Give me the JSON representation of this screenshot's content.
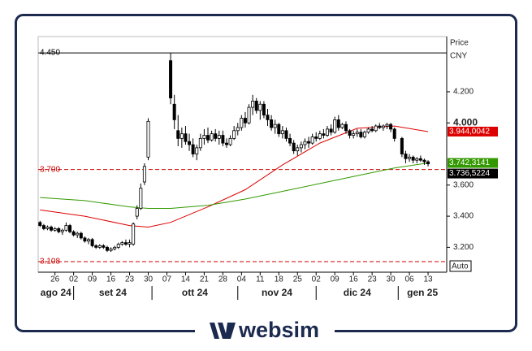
{
  "chart_data": {
    "type": "candlestick",
    "ylim": [
      3.04,
      4.555
    ],
    "xlim": [
      -0.5,
      109
    ],
    "yticks": [
      {
        "value": 3.2,
        "label": "3.200"
      },
      {
        "value": 3.4,
        "label": "3.400"
      },
      {
        "value": 3.6,
        "label": "3.600"
      },
      {
        "value": 4.0,
        "label": "4.000",
        "bold": true
      },
      {
        "value": 4.2,
        "label": "4.200"
      }
    ],
    "xticks": [
      {
        "value": 4,
        "label": "26"
      },
      {
        "value": 9,
        "label": "02"
      },
      {
        "value": 14,
        "label": "09"
      },
      {
        "value": 19,
        "label": "16"
      },
      {
        "value": 24,
        "label": "23"
      },
      {
        "value": 29,
        "label": "30"
      },
      {
        "value": 34,
        "label": "07"
      },
      {
        "value": 39,
        "label": "14"
      },
      {
        "value": 44,
        "label": "21"
      },
      {
        "value": 49,
        "label": "28"
      },
      {
        "value": 54,
        "label": "04"
      },
      {
        "value": 59,
        "label": "11"
      },
      {
        "value": 64,
        "label": "18"
      },
      {
        "value": 69,
        "label": "25"
      },
      {
        "value": 74,
        "label": "02"
      },
      {
        "value": 79,
        "label": "09"
      },
      {
        "value": 84,
        "label": "16"
      },
      {
        "value": 89,
        "label": "23"
      },
      {
        "value": 94,
        "label": "30"
      },
      {
        "value": 99,
        "label": "06"
      },
      {
        "value": 104,
        "label": "13"
      }
    ],
    "month_ticks": [
      {
        "value": -0.5,
        "label": "ago 24"
      },
      {
        "value": 9,
        "label": "set 24"
      },
      {
        "value": 30,
        "label": "ott 24"
      },
      {
        "value": 53,
        "label": "nov 24"
      },
      {
        "value": 74,
        "label": "dic 24"
      },
      {
        "value": 96,
        "label": "gen 25"
      }
    ],
    "axis_title": "Price",
    "currency": "CNY",
    "scale_mode": "Auto",
    "hlines": [
      {
        "value": 4.45,
        "label": "4.450",
        "color": "#000000",
        "dashed": false
      },
      {
        "value": 3.7,
        "label": "3.700",
        "color": "#cc0000",
        "dashed": true
      },
      {
        "value": 3.108,
        "label": "3.108",
        "color": "#cc0000",
        "dashed": true
      }
    ],
    "candles": {
      "last_label": "3.736,5224",
      "label_color": "#000000",
      "ohlc": [
        [
          3.36,
          3.37,
          3.33,
          3.34
        ],
        [
          3.34,
          3.35,
          3.31,
          3.32
        ],
        [
          3.32,
          3.34,
          3.31,
          3.33
        ],
        [
          3.33,
          3.34,
          3.3,
          3.31
        ],
        [
          3.31,
          3.33,
          3.3,
          3.32
        ],
        [
          3.32,
          3.33,
          3.29,
          3.3
        ],
        [
          3.3,
          3.32,
          3.28,
          3.31
        ],
        [
          3.31,
          3.36,
          3.3,
          3.34
        ],
        [
          3.34,
          3.35,
          3.29,
          3.3
        ],
        [
          3.3,
          3.31,
          3.27,
          3.28
        ],
        [
          3.28,
          3.3,
          3.26,
          3.29
        ],
        [
          3.29,
          3.3,
          3.25,
          3.26
        ],
        [
          3.26,
          3.27,
          3.23,
          3.24
        ],
        [
          3.24,
          3.26,
          3.22,
          3.25
        ],
        [
          3.25,
          3.26,
          3.2,
          3.21
        ],
        [
          3.21,
          3.22,
          3.19,
          3.2
        ],
        [
          3.2,
          3.22,
          3.19,
          3.21
        ],
        [
          3.21,
          3.22,
          3.19,
          3.2
        ],
        [
          3.2,
          3.21,
          3.17,
          3.18
        ],
        [
          3.18,
          3.2,
          3.17,
          3.19
        ],
        [
          3.19,
          3.21,
          3.18,
          3.2
        ],
        [
          3.2,
          3.23,
          3.19,
          3.22
        ],
        [
          3.22,
          3.24,
          3.21,
          3.23
        ],
        [
          3.23,
          3.25,
          3.21,
          3.22
        ],
        [
          3.22,
          3.25,
          3.2,
          3.23
        ],
        [
          3.22,
          3.36,
          3.21,
          3.35
        ],
        [
          3.4,
          3.47,
          3.38,
          3.45
        ],
        [
          3.45,
          3.61,
          3.44,
          3.58
        ],
        [
          3.62,
          3.74,
          3.6,
          3.72
        ],
        [
          3.78,
          4.03,
          3.76,
          4.01
        ],
        null,
        null,
        null,
        null,
        null,
        [
          4.4,
          4.45,
          4.12,
          4.16
        ],
        [
          4.12,
          4.18,
          3.96,
          4.02
        ],
        [
          3.95,
          4.05,
          3.85,
          3.9
        ],
        [
          3.9,
          3.97,
          3.84,
          3.93
        ],
        [
          3.93,
          3.98,
          3.86,
          3.88
        ],
        [
          3.88,
          3.93,
          3.82,
          3.86
        ],
        [
          3.86,
          3.9,
          3.78,
          3.8
        ],
        [
          3.8,
          3.86,
          3.76,
          3.84
        ],
        [
          3.84,
          3.93,
          3.82,
          3.9
        ],
        [
          3.9,
          3.96,
          3.86,
          3.92
        ],
        [
          3.92,
          3.97,
          3.87,
          3.89
        ],
        [
          3.89,
          3.95,
          3.88,
          3.93
        ],
        [
          3.93,
          3.96,
          3.88,
          3.9
        ],
        [
          3.9,
          3.95,
          3.86,
          3.92
        ],
        [
          3.92,
          3.95,
          3.85,
          3.87
        ],
        [
          3.87,
          3.9,
          3.84,
          3.86
        ],
        [
          3.86,
          3.92,
          3.85,
          3.9
        ],
        [
          3.9,
          3.98,
          3.89,
          3.95
        ],
        [
          3.95,
          4.0,
          3.92,
          3.97
        ],
        [
          3.97,
          4.05,
          3.95,
          4.03
        ],
        [
          4.03,
          4.07,
          3.97,
          4.0
        ],
        [
          4.0,
          4.12,
          3.99,
          4.1
        ],
        [
          4.1,
          4.18,
          4.05,
          4.14
        ],
        [
          4.14,
          4.16,
          4.06,
          4.08
        ],
        [
          4.08,
          4.14,
          4.02,
          4.12
        ],
        [
          4.12,
          4.14,
          4.03,
          4.05
        ],
        [
          4.05,
          4.09,
          3.98,
          4.02
        ],
        [
          4.02,
          4.05,
          3.95,
          3.97
        ],
        [
          3.97,
          4.02,
          3.93,
          3.99
        ],
        [
          3.99,
          4.0,
          3.91,
          3.93
        ],
        [
          3.93,
          3.98,
          3.9,
          3.95
        ],
        [
          3.95,
          3.97,
          3.88,
          3.9
        ],
        [
          3.9,
          3.93,
          3.85,
          3.87
        ],
        [
          3.87,
          3.89,
          3.8,
          3.82
        ],
        [
          3.82,
          3.86,
          3.79,
          3.84
        ],
        [
          3.84,
          3.88,
          3.81,
          3.86
        ],
        [
          3.86,
          3.9,
          3.83,
          3.88
        ],
        [
          3.88,
          3.91,
          3.84,
          3.87
        ],
        [
          3.87,
          3.93,
          3.86,
          3.91
        ],
        [
          3.91,
          3.94,
          3.88,
          3.9
        ],
        [
          3.9,
          3.95,
          3.89,
          3.93
        ],
        [
          3.93,
          3.96,
          3.9,
          3.92
        ],
        [
          3.92,
          3.98,
          3.91,
          3.96
        ],
        [
          3.96,
          3.99,
          3.92,
          3.94
        ],
        [
          3.94,
          4.04,
          3.93,
          4.02
        ],
        [
          4.02,
          4.05,
          3.95,
          3.97
        ],
        [
          3.97,
          4.0,
          3.96,
          3.99
        ],
        [
          3.99,
          4.01,
          3.93,
          3.95
        ],
        [
          3.95,
          3.96,
          3.9,
          3.92
        ],
        [
          3.92,
          3.95,
          3.9,
          3.93
        ],
        [
          3.93,
          3.96,
          3.91,
          3.94
        ],
        [
          3.94,
          3.96,
          3.9,
          3.91
        ],
        [
          3.91,
          3.95,
          3.9,
          3.94
        ],
        [
          3.94,
          3.97,
          3.93,
          3.96
        ],
        [
          3.96,
          3.98,
          3.94,
          3.95
        ],
        [
          3.95,
          3.99,
          3.94,
          3.98
        ],
        [
          3.98,
          4.0,
          3.96,
          3.97
        ],
        [
          3.97,
          3.99,
          3.95,
          3.98
        ],
        [
          3.98,
          4.0,
          3.96,
          3.99
        ],
        [
          3.99,
          4.0,
          3.94,
          3.96
        ],
        [
          3.96,
          3.97,
          3.88,
          3.9
        ],
        null,
        [
          3.9,
          3.91,
          3.78,
          3.8
        ],
        [
          3.8,
          3.82,
          3.74,
          3.77
        ],
        [
          3.77,
          3.8,
          3.75,
          3.78
        ],
        [
          3.78,
          3.79,
          3.74,
          3.76
        ],
        [
          3.76,
          3.78,
          3.74,
          3.77
        ],
        [
          3.77,
          3.79,
          3.75,
          3.76
        ],
        [
          3.76,
          3.77,
          3.73,
          3.75
        ],
        [
          3.75,
          3.76,
          3.72,
          3.7365224
        ]
      ]
    },
    "series": [
      {
        "color": "#dd0000",
        "last_label": "3.944,0042",
        "x": [
          0,
          12,
          24,
          29,
          35,
          45,
          55,
          65,
          75,
          85,
          95,
          104
        ],
        "values": [
          3.44,
          3.4,
          3.34,
          3.33,
          3.36,
          3.46,
          3.57,
          3.73,
          3.87,
          3.965,
          3.98,
          3.9440042
        ]
      },
      {
        "color": "#339900",
        "last_label": "3.742,3141",
        "x": [
          0,
          12,
          24,
          29,
          35,
          45,
          55,
          65,
          75,
          85,
          95,
          104
        ],
        "values": [
          3.52,
          3.5,
          3.46,
          3.45,
          3.45,
          3.47,
          3.51,
          3.56,
          3.61,
          3.66,
          3.71,
          3.7423141
        ]
      }
    ]
  },
  "logo": "websim"
}
